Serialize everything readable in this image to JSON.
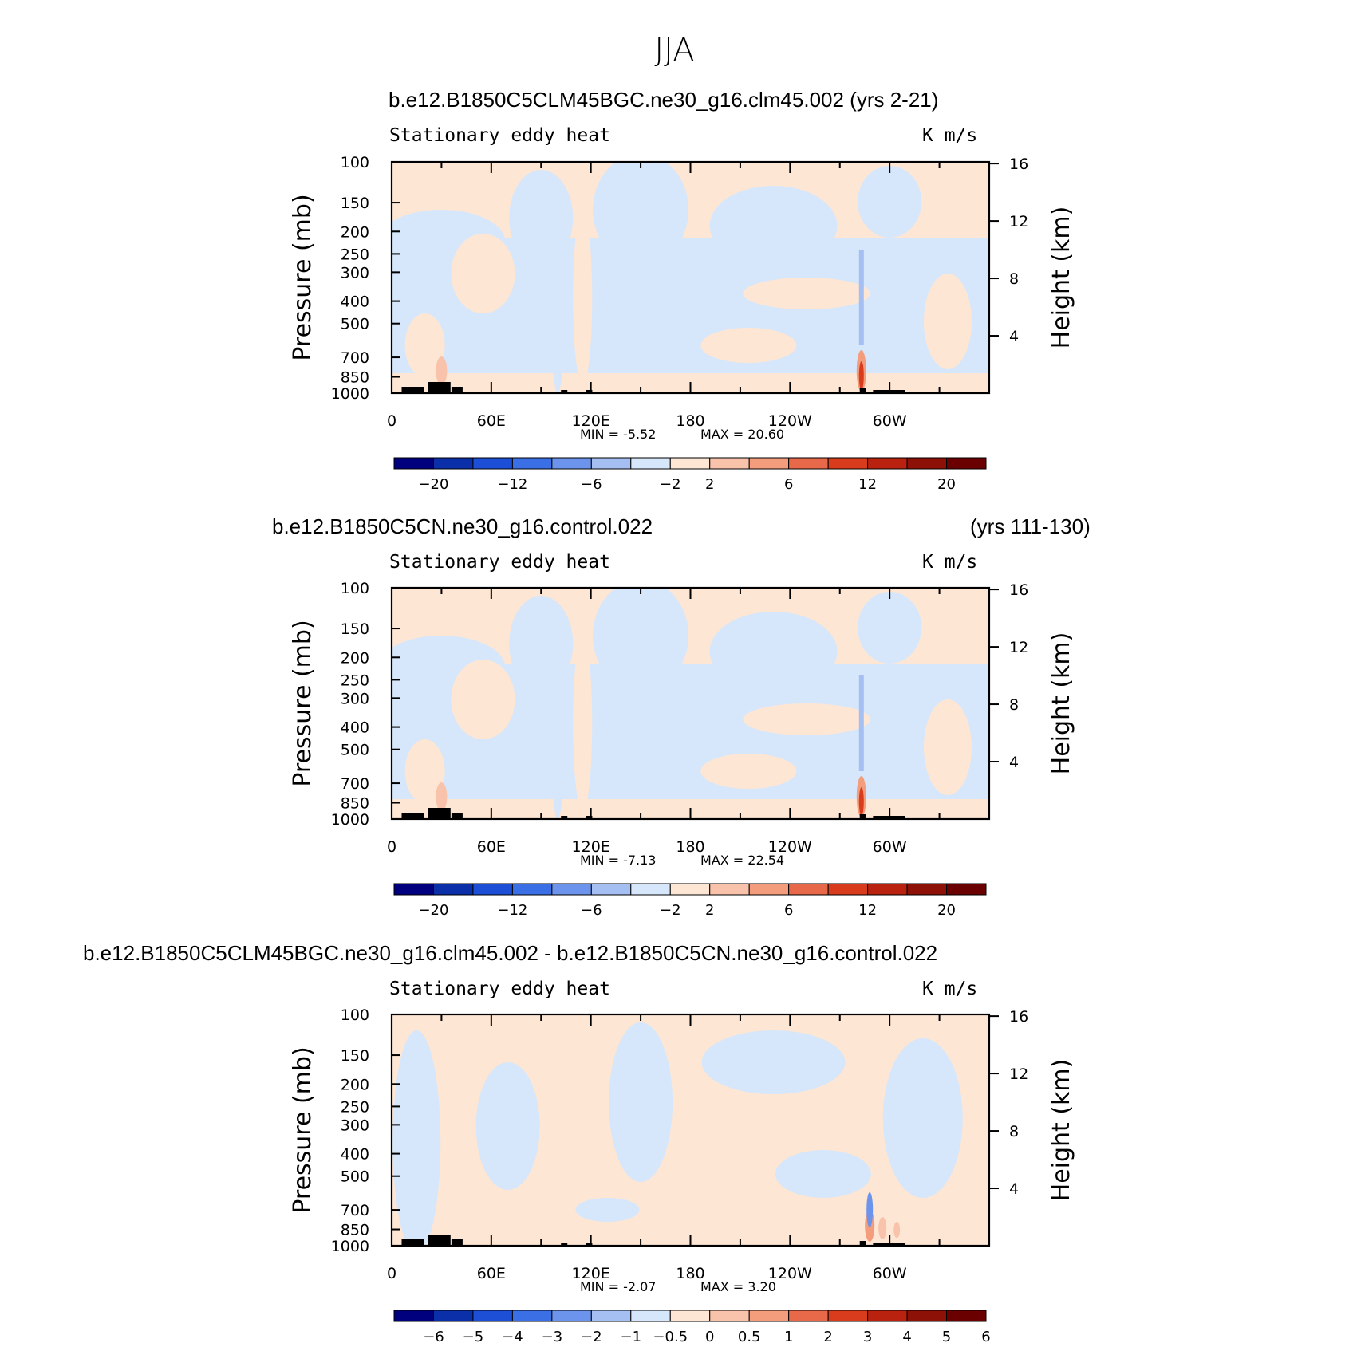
{
  "season": "JJA",
  "panels": [
    {
      "run_title": "b.e12.B1850C5CLM45BGC.ne30_g16.clm45.002 (yrs 2-21)",
      "run_years": "",
      "field_label": "Stationary eddy heat",
      "units": "K m/s",
      "min_text": "MIN =   -5.52",
      "max_text": "MAX =   20.60",
      "colorbar_labels": [
        "-20",
        "-12",
        "-6",
        "-2",
        "2",
        "6",
        "12",
        "20"
      ]
    },
    {
      "run_title": "b.e12.B1850C5CN.ne30_g16.control.022",
      "run_years": "(yrs 111-130)",
      "field_label": "Stationary eddy heat",
      "units": "K m/s",
      "min_text": "MIN =   -7.13",
      "max_text": "MAX =   22.54",
      "colorbar_labels": [
        "-20",
        "-12",
        "-6",
        "-2",
        "2",
        "6",
        "12",
        "20"
      ]
    },
    {
      "run_title": "b.e12.B1850C5CLM45BGC.ne30_g16.clm45.002 - b.e12.B1850C5CN.ne30_g16.control.022",
      "run_years": "",
      "field_label": "Stationary eddy heat",
      "units": "K m/s",
      "min_text": "MIN =   -2.07",
      "max_text": "MAX =    3.20",
      "colorbar_labels": [
        "-6",
        "-5",
        "-4",
        "-3",
        "-2",
        "-1",
        "-0.5",
        "0",
        "0.5",
        "1",
        "2",
        "3",
        "4",
        "5",
        "6"
      ]
    }
  ],
  "axes": {
    "ylabel_left": "Pressure (mb)",
    "ylabel_right": "Height (km)",
    "x_ticks": [
      "0",
      "60E",
      "120E",
      "180",
      "120W",
      "60W"
    ],
    "pressure_ticks": [
      "100",
      "150",
      "200",
      "250",
      "300",
      "400",
      "500",
      "700",
      "850",
      "1000"
    ],
    "height_ticks": [
      "16",
      "12",
      "8",
      "4"
    ]
  },
  "chart_data": [
    {
      "type": "heatmap",
      "title": "b.e12.B1850C5CLM45BGC.ne30_g16.clm45.002 (yrs 2-21)",
      "variable": "Stationary eddy heat",
      "units": "K m/s",
      "x": "longitude 0-360",
      "y": "pressure 1000-100 mb (log scale)",
      "min": -5.52,
      "max": 20.6,
      "contour_levels": [
        -20,
        -16,
        -12,
        -8,
        -6,
        -4,
        -2,
        0,
        2,
        4,
        6,
        8,
        12,
        16,
        20
      ],
      "colorbar_labels": [
        -20,
        -12,
        -6,
        -2,
        2,
        6,
        12,
        20
      ]
    },
    {
      "type": "heatmap",
      "title": "b.e12.B1850C5CN.ne30_g16.control.022 (yrs 111-130)",
      "variable": "Stationary eddy heat",
      "units": "K m/s",
      "min": -7.13,
      "max": 22.54,
      "contour_levels": [
        -20,
        -16,
        -12,
        -8,
        -6,
        -4,
        -2,
        0,
        2,
        4,
        6,
        8,
        12,
        16,
        20
      ],
      "colorbar_labels": [
        -20,
        -12,
        -6,
        -2,
        2,
        6,
        12,
        20
      ]
    },
    {
      "type": "heatmap",
      "title": "b.e12.B1850C5CLM45BGC.ne30_g16.clm45.002 - b.e12.B1850C5CN.ne30_g16.control.022",
      "variable": "Stationary eddy heat",
      "units": "K m/s",
      "min": -2.07,
      "max": 3.2,
      "contour_levels": [
        -6,
        -5,
        -4,
        -3,
        -2,
        -1,
        -0.5,
        0,
        0.5,
        1,
        2,
        3,
        4,
        5,
        6
      ],
      "colorbar_labels": [
        -6,
        -5,
        -4,
        -3,
        -2,
        -1,
        -0.5,
        0,
        0.5,
        1,
        2,
        3,
        4,
        5,
        6
      ]
    }
  ],
  "colors": {
    "colorbar": [
      "#00007f",
      "#0a2fa8",
      "#1d4fd6",
      "#3b6fe6",
      "#6c94ec",
      "#a6bff2",
      "#d6e7fb",
      "#fde6d4",
      "#f8c2ab",
      "#f39d7d",
      "#e8694a",
      "#d93c1c",
      "#b8220f",
      "#8e1108",
      "#6b0000"
    ],
    "light_blue": "#d6e7fb",
    "light_orange": "#fde6d4",
    "terrain": "#000000"
  }
}
